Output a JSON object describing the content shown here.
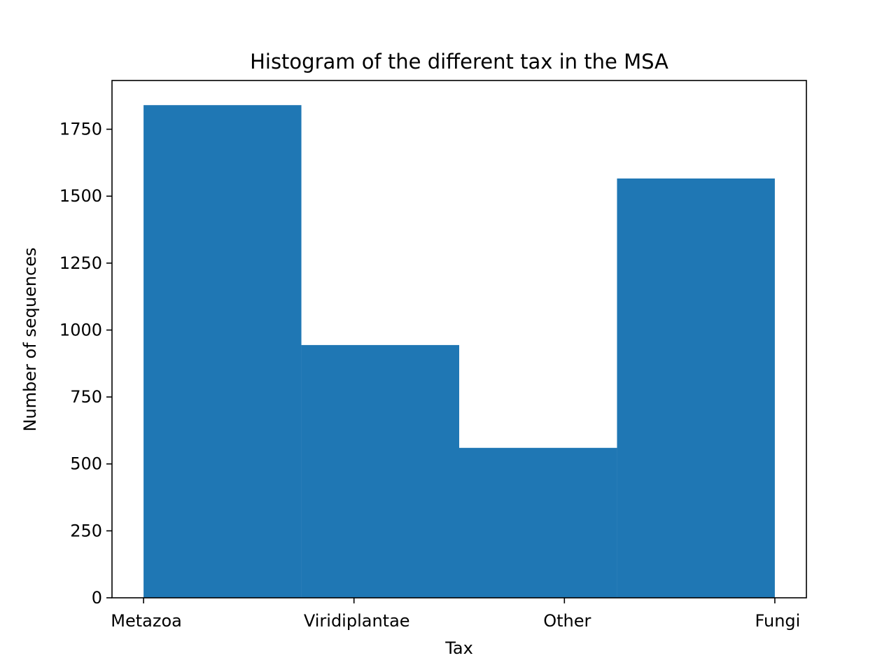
{
  "chart_data": {
    "type": "bar",
    "title": "Histogram of the different tax in the MSA",
    "xlabel": "Tax",
    "ylabel": "Number of sequences",
    "categories": [
      "Metazoa",
      "Viridiplantae",
      "Other",
      "Fungi"
    ],
    "bins": [
      {
        "start": 0.0,
        "end": 0.75,
        "value": 1840
      },
      {
        "start": 0.75,
        "end": 1.5,
        "value": 944
      },
      {
        "start": 1.5,
        "end": 2.25,
        "value": 560
      },
      {
        "start": 2.25,
        "end": 3.0,
        "value": 1566
      }
    ],
    "xlim": [
      -0.15,
      3.15
    ],
    "ylim": [
      0,
      1932
    ],
    "yticks": [
      0,
      250,
      500,
      750,
      1000,
      1250,
      1500,
      1750
    ],
    "xticks": [
      0,
      1,
      2,
      3
    ],
    "bar_color": "#1f77b4",
    "grid": false,
    "legend": false
  }
}
